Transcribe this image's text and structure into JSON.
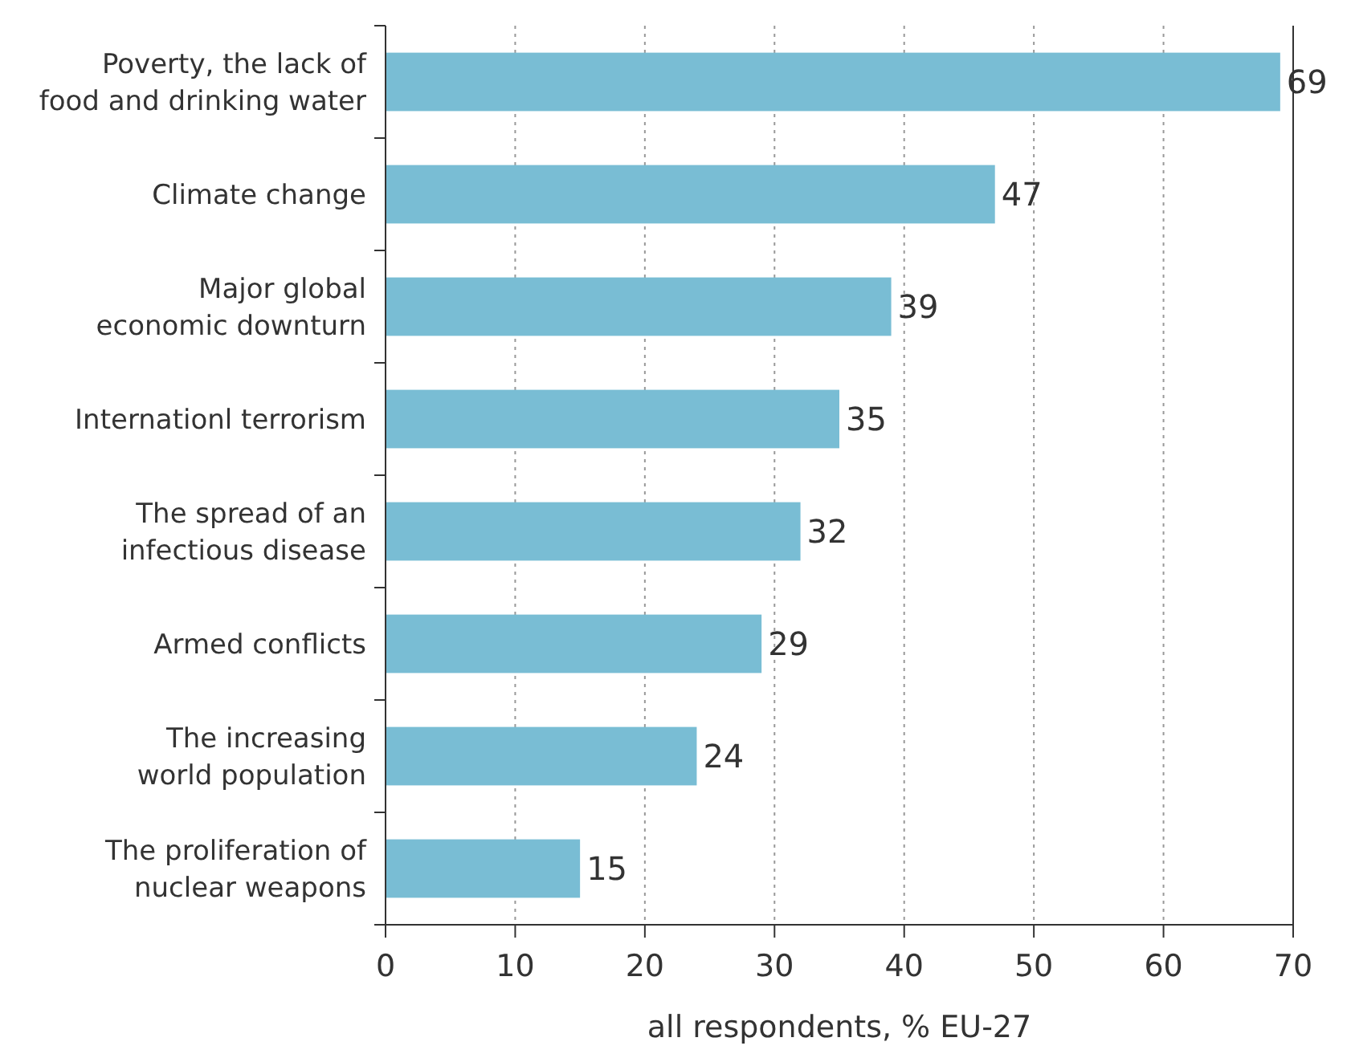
{
  "chart_data": {
    "type": "bar",
    "orientation": "horizontal",
    "xlabel": "all respondents, % EU-27",
    "categories": [
      "Poverty, the lack of\nfood and drinking water",
      "Climate change",
      "Major global\neconomic downturn",
      "Internationl terrorism",
      "The spread of an\ninfectious disease",
      "Armed conflicts",
      "The increasing\nworld population",
      "The proliferation of\nnuclear weapons"
    ],
    "values": [
      69,
      47,
      39,
      35,
      32,
      29,
      24,
      15
    ],
    "color": "#79bdd4",
    "xlim": [
      0,
      70
    ],
    "xticks": [
      0,
      10,
      20,
      30,
      40,
      50,
      60,
      70
    ],
    "grid": "x",
    "data_labels": true
  }
}
